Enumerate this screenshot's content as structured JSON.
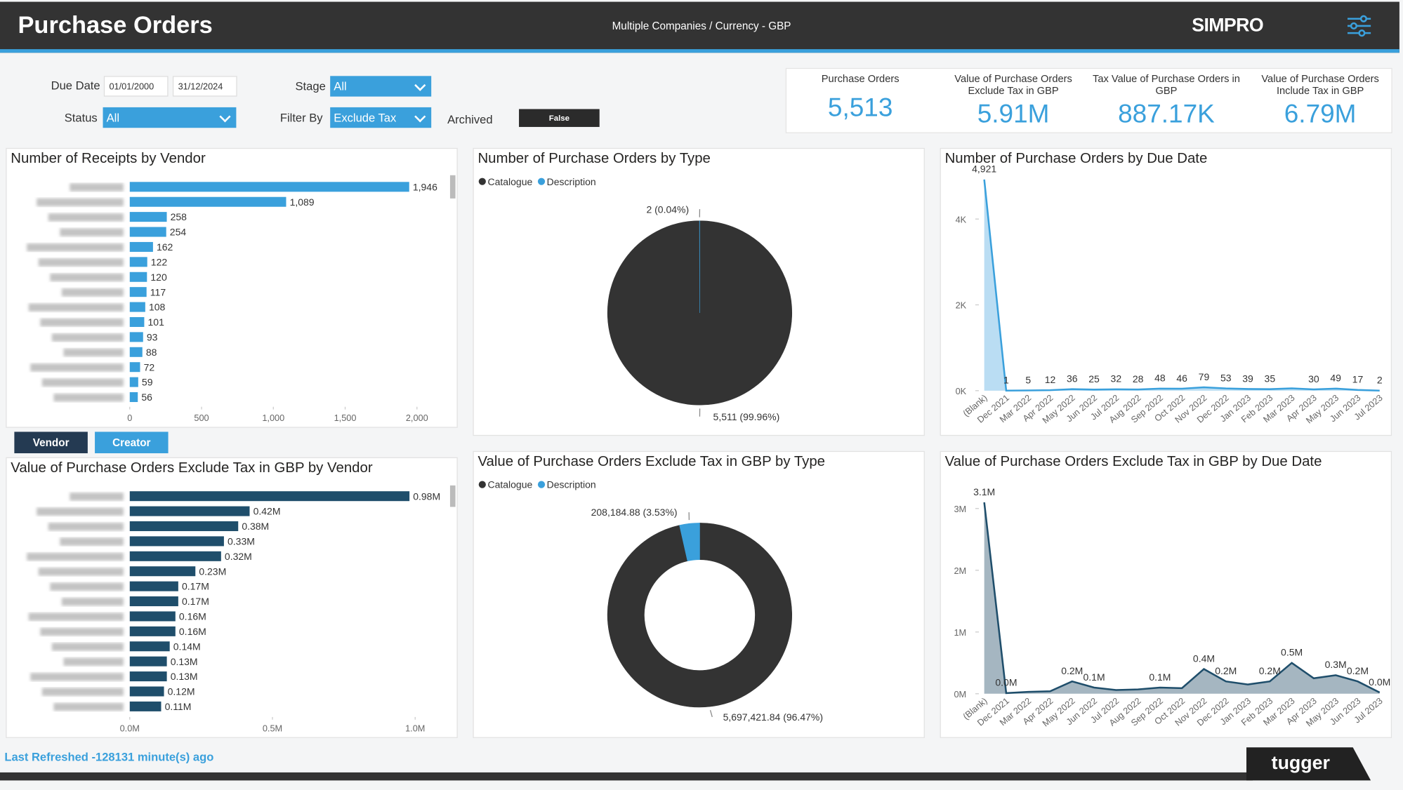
{
  "header": {
    "title": "Purchase Orders",
    "subtitle": "Multiple Companies / Currency - GBP",
    "logo": "SIMPRO"
  },
  "filters": {
    "due_date_label": "Due Date",
    "date_from": "01/01/2000",
    "date_to": "31/12/2024",
    "stage_label": "Stage",
    "stage_value": "All",
    "status_label": "Status",
    "status_value": "All",
    "filter_by_label": "Filter By",
    "filter_by_value": "Exclude Tax",
    "archived_label": "Archived",
    "archived_value": "False"
  },
  "kpis": [
    {
      "label": "Purchase Orders",
      "value": "5,513"
    },
    {
      "label": "Value of Purchase Orders Exclude Tax in GBP",
      "value": "5.91M"
    },
    {
      "label": "Tax Value of Purchase Orders in GBP",
      "value": "887.17K"
    },
    {
      "label": "Value of Purchase Orders Include Tax in GBP",
      "value": "6.79M"
    }
  ],
  "buttons": [
    "Vendor",
    "Creator"
  ],
  "footer": {
    "refreshed": "Last Refreshed -128131 minute(s) ago",
    "brand": "tugger"
  },
  "chart_data": [
    {
      "type": "hbar",
      "title": "Number of Receipts by Vendor",
      "categories": [
        null,
        null,
        null,
        null,
        null,
        null,
        null,
        null,
        null,
        null,
        null,
        null,
        null,
        null,
        null
      ],
      "values": [
        1946,
        1089,
        258,
        254,
        162,
        122,
        120,
        117,
        108,
        101,
        93,
        88,
        72,
        59,
        56
      ],
      "value_labels": [
        "1,946",
        "1,089",
        "258",
        "254",
        "162",
        "122",
        "120",
        "117",
        "108",
        "101",
        "93",
        "88",
        "72",
        "59",
        "56"
      ],
      "color": "#3aa0dc",
      "xlim": [
        0,
        2000
      ],
      "xticks": [
        0,
        500,
        {
          "value": 1000,
          "label": "1,000"
        },
        {
          "value": 1500,
          "label": "1,500"
        },
        {
          "value": 2000,
          "label": "2,000"
        }
      ]
    },
    {
      "type": "pie",
      "title": "Number of Purchase Orders by Type",
      "categories": [
        "Catalogue",
        "Description"
      ],
      "values": [
        5511,
        2
      ],
      "value_labels": [
        "5,511 (99.96%)",
        "2 (0.04%)"
      ],
      "colors": [
        "#333333",
        "#3aa0dc"
      ],
      "legend": "top-left"
    },
    {
      "type": "area",
      "title": "Number of Purchase Orders by Due Date",
      "categories": [
        "(Blank)",
        "Dec 2021",
        "Mar 2022",
        "Apr 2022",
        "May 2022",
        "Jun 2022",
        "Jul 2022",
        "Aug 2022",
        "Sep 2022",
        "Oct 2022",
        "Nov 2022",
        "Dec 2022",
        "Jan 2023",
        "Feb 2023",
        "Mar 2023",
        "Apr 2023",
        "May 2023",
        "Jun 2023",
        "Jul 2023"
      ],
      "values": [
        4921,
        1,
        5,
        12,
        36,
        25,
        32,
        28,
        48,
        46,
        79,
        53,
        39,
        35,
        55,
        30,
        49,
        17,
        2
      ],
      "value_labels": [
        "4,921",
        "1",
        "5",
        "12",
        "36",
        "25",
        "32",
        "28",
        "48",
        "46",
        "79",
        "53",
        "39",
        "35",
        null,
        "30",
        "49",
        "17",
        "2"
      ],
      "color": "#3aa0dc",
      "fill": "#a9d5f0",
      "ylim": [
        0,
        5000
      ],
      "yticks": [
        {
          "value": 0,
          "label": "0K"
        },
        {
          "value": 2000,
          "label": "2K"
        },
        {
          "value": 4000,
          "label": "4K"
        }
      ]
    },
    {
      "type": "hbar",
      "title": "Value of Purchase Orders Exclude Tax in GBP by Vendor",
      "categories": [
        null,
        null,
        null,
        null,
        null,
        null,
        null,
        null,
        null,
        null,
        null,
        null,
        null,
        null,
        null
      ],
      "values": [
        980000,
        420000,
        380000,
        330000,
        320000,
        230000,
        170000,
        170000,
        160000,
        160000,
        140000,
        130000,
        130000,
        120000,
        110000
      ],
      "value_labels": [
        "0.98M",
        "0.42M",
        "0.38M",
        "0.33M",
        "0.32M",
        "0.23M",
        "0.17M",
        "0.17M",
        "0.16M",
        "0.16M",
        "0.14M",
        "0.13M",
        "0.13M",
        "0.12M",
        "0.11M"
      ],
      "color": "#1f4e6b",
      "xlim": [
        0,
        1000000
      ],
      "xticks": [
        {
          "value": 0,
          "label": "0.0M"
        },
        {
          "value": 500000,
          "label": "0.5M"
        },
        {
          "value": 1000000,
          "label": "1.0M"
        }
      ]
    },
    {
      "type": "donut",
      "title": "Value of Purchase Orders Exclude Tax in GBP by Type",
      "categories": [
        "Catalogue",
        "Description"
      ],
      "values": [
        5697421.84,
        208184.88
      ],
      "value_labels": [
        "5,697,421.84 (96.47%)",
        "208,184.88 (3.53%)"
      ],
      "colors": [
        "#333333",
        "#3aa0dc"
      ],
      "legend": "top-left"
    },
    {
      "type": "area",
      "title": "Value of Purchase Orders Exclude Tax in GBP by Due Date",
      "categories": [
        "(Blank)",
        "Dec 2021",
        "Mar 2022",
        "Apr 2022",
        "May 2022",
        "Jun 2022",
        "Jul 2022",
        "Aug 2022",
        "Sep 2022",
        "Oct 2022",
        "Nov 2022",
        "Dec 2022",
        "Jan 2023",
        "Feb 2023",
        "Mar 2023",
        "Apr 2023",
        "May 2023",
        "Jun 2023",
        "Jul 2023"
      ],
      "values": [
        3100000,
        10000,
        30000,
        40000,
        200000,
        100000,
        60000,
        70000,
        100000,
        90000,
        400000,
        200000,
        150000,
        200000,
        500000,
        250000,
        300000,
        200000,
        20000
      ],
      "value_labels": [
        "3.1M",
        "0.0M",
        null,
        null,
        "0.2M",
        "0.1M",
        null,
        null,
        "0.1M",
        null,
        "0.4M",
        "0.2M",
        null,
        "0.2M",
        "0.5M",
        null,
        "0.3M",
        "0.2M",
        "0.0M"
      ],
      "color": "#1f4e6b",
      "fill": "#8ea4b2",
      "ylim": [
        0,
        3200000
      ],
      "yticks": [
        {
          "value": 0,
          "label": "0M"
        },
        {
          "value": 1000000,
          "label": "1M"
        },
        {
          "value": 2000000,
          "label": "2M"
        },
        {
          "value": 3000000,
          "label": "3M"
        }
      ]
    }
  ]
}
